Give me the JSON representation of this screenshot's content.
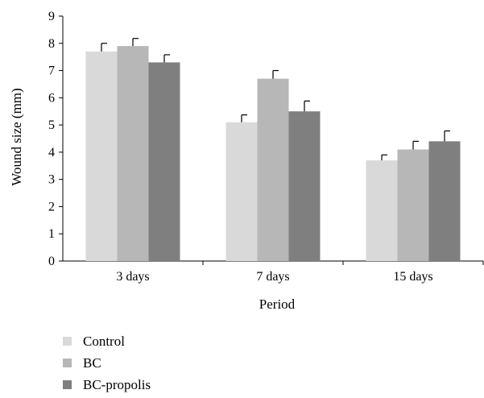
{
  "chart_data": {
    "type": "bar",
    "categories": [
      "3 days",
      "7 days",
      "15 days"
    ],
    "series": [
      {
        "name": "Control",
        "color": "#d9d9d9",
        "values": [
          7.7,
          5.1,
          3.7
        ],
        "errors": [
          0.3,
          0.27,
          0.2
        ]
      },
      {
        "name": "BC",
        "color": "#b7b7b7",
        "values": [
          7.9,
          6.7,
          4.1
        ],
        "errors": [
          0.28,
          0.3,
          0.3
        ]
      },
      {
        "name": "BC-propolis",
        "color": "#7f7f7f",
        "values": [
          7.3,
          5.5,
          4.4
        ],
        "errors": [
          0.28,
          0.38,
          0.38
        ]
      }
    ],
    "xlabel": "Period",
    "ylabel": "Wound size (mm)",
    "ylim": [
      0,
      9
    ],
    "yticks": [
      "0",
      "1",
      "2",
      "3",
      "4",
      "5",
      "6",
      "7",
      "8",
      "9"
    ],
    "grid": false,
    "legend_position": "bottom-left"
  }
}
